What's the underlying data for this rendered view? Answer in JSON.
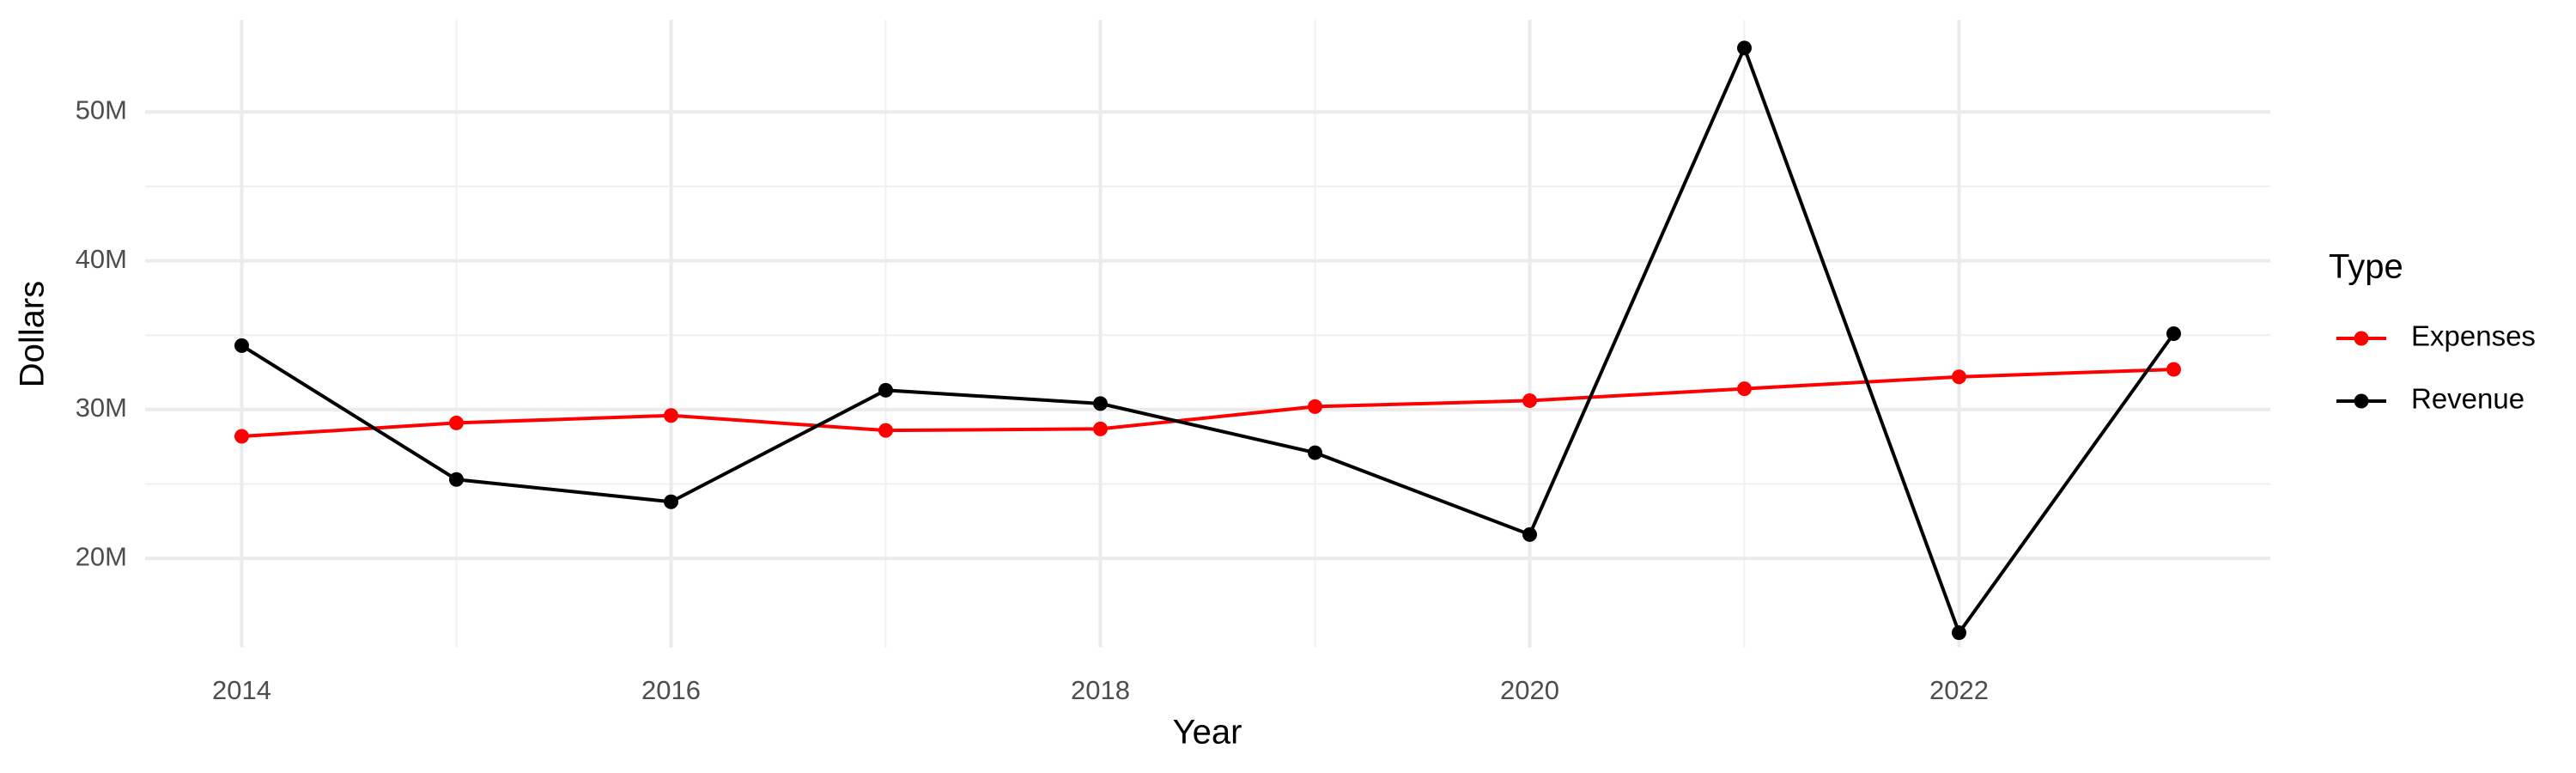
{
  "chart_data": {
    "type": "line",
    "x_label": "Year",
    "y_label": "Dollars",
    "legend_title": "Type",
    "x": [
      2014,
      2015,
      2016,
      2017,
      2018,
      2019,
      2020,
      2021,
      2022,
      2023
    ],
    "series": [
      {
        "name": "Expenses",
        "color": "#ff0000",
        "values": [
          28200000,
          29100000,
          29600000,
          28600000,
          28700000,
          30200000,
          30600000,
          31400000,
          32200000,
          32700000
        ]
      },
      {
        "name": "Revenue",
        "color": "#000000",
        "values": [
          34300000,
          25300000,
          23800000,
          31300000,
          30400000,
          27100000,
          21600000,
          54300000,
          15000000,
          35100000
        ]
      }
    ],
    "xlim": [
      2013.55,
      2023.45
    ],
    "xticks": [
      2014,
      2016,
      2018,
      2020,
      2022
    ],
    "ylim": [
      14000000,
      56200000
    ],
    "yticks": [
      {
        "value": 20000000,
        "label": "20M"
      },
      {
        "value": 30000000,
        "label": "30M"
      },
      {
        "value": 40000000,
        "label": "40M"
      },
      {
        "value": 50000000,
        "label": "50M"
      }
    ],
    "grid": true,
    "legend": "right"
  }
}
